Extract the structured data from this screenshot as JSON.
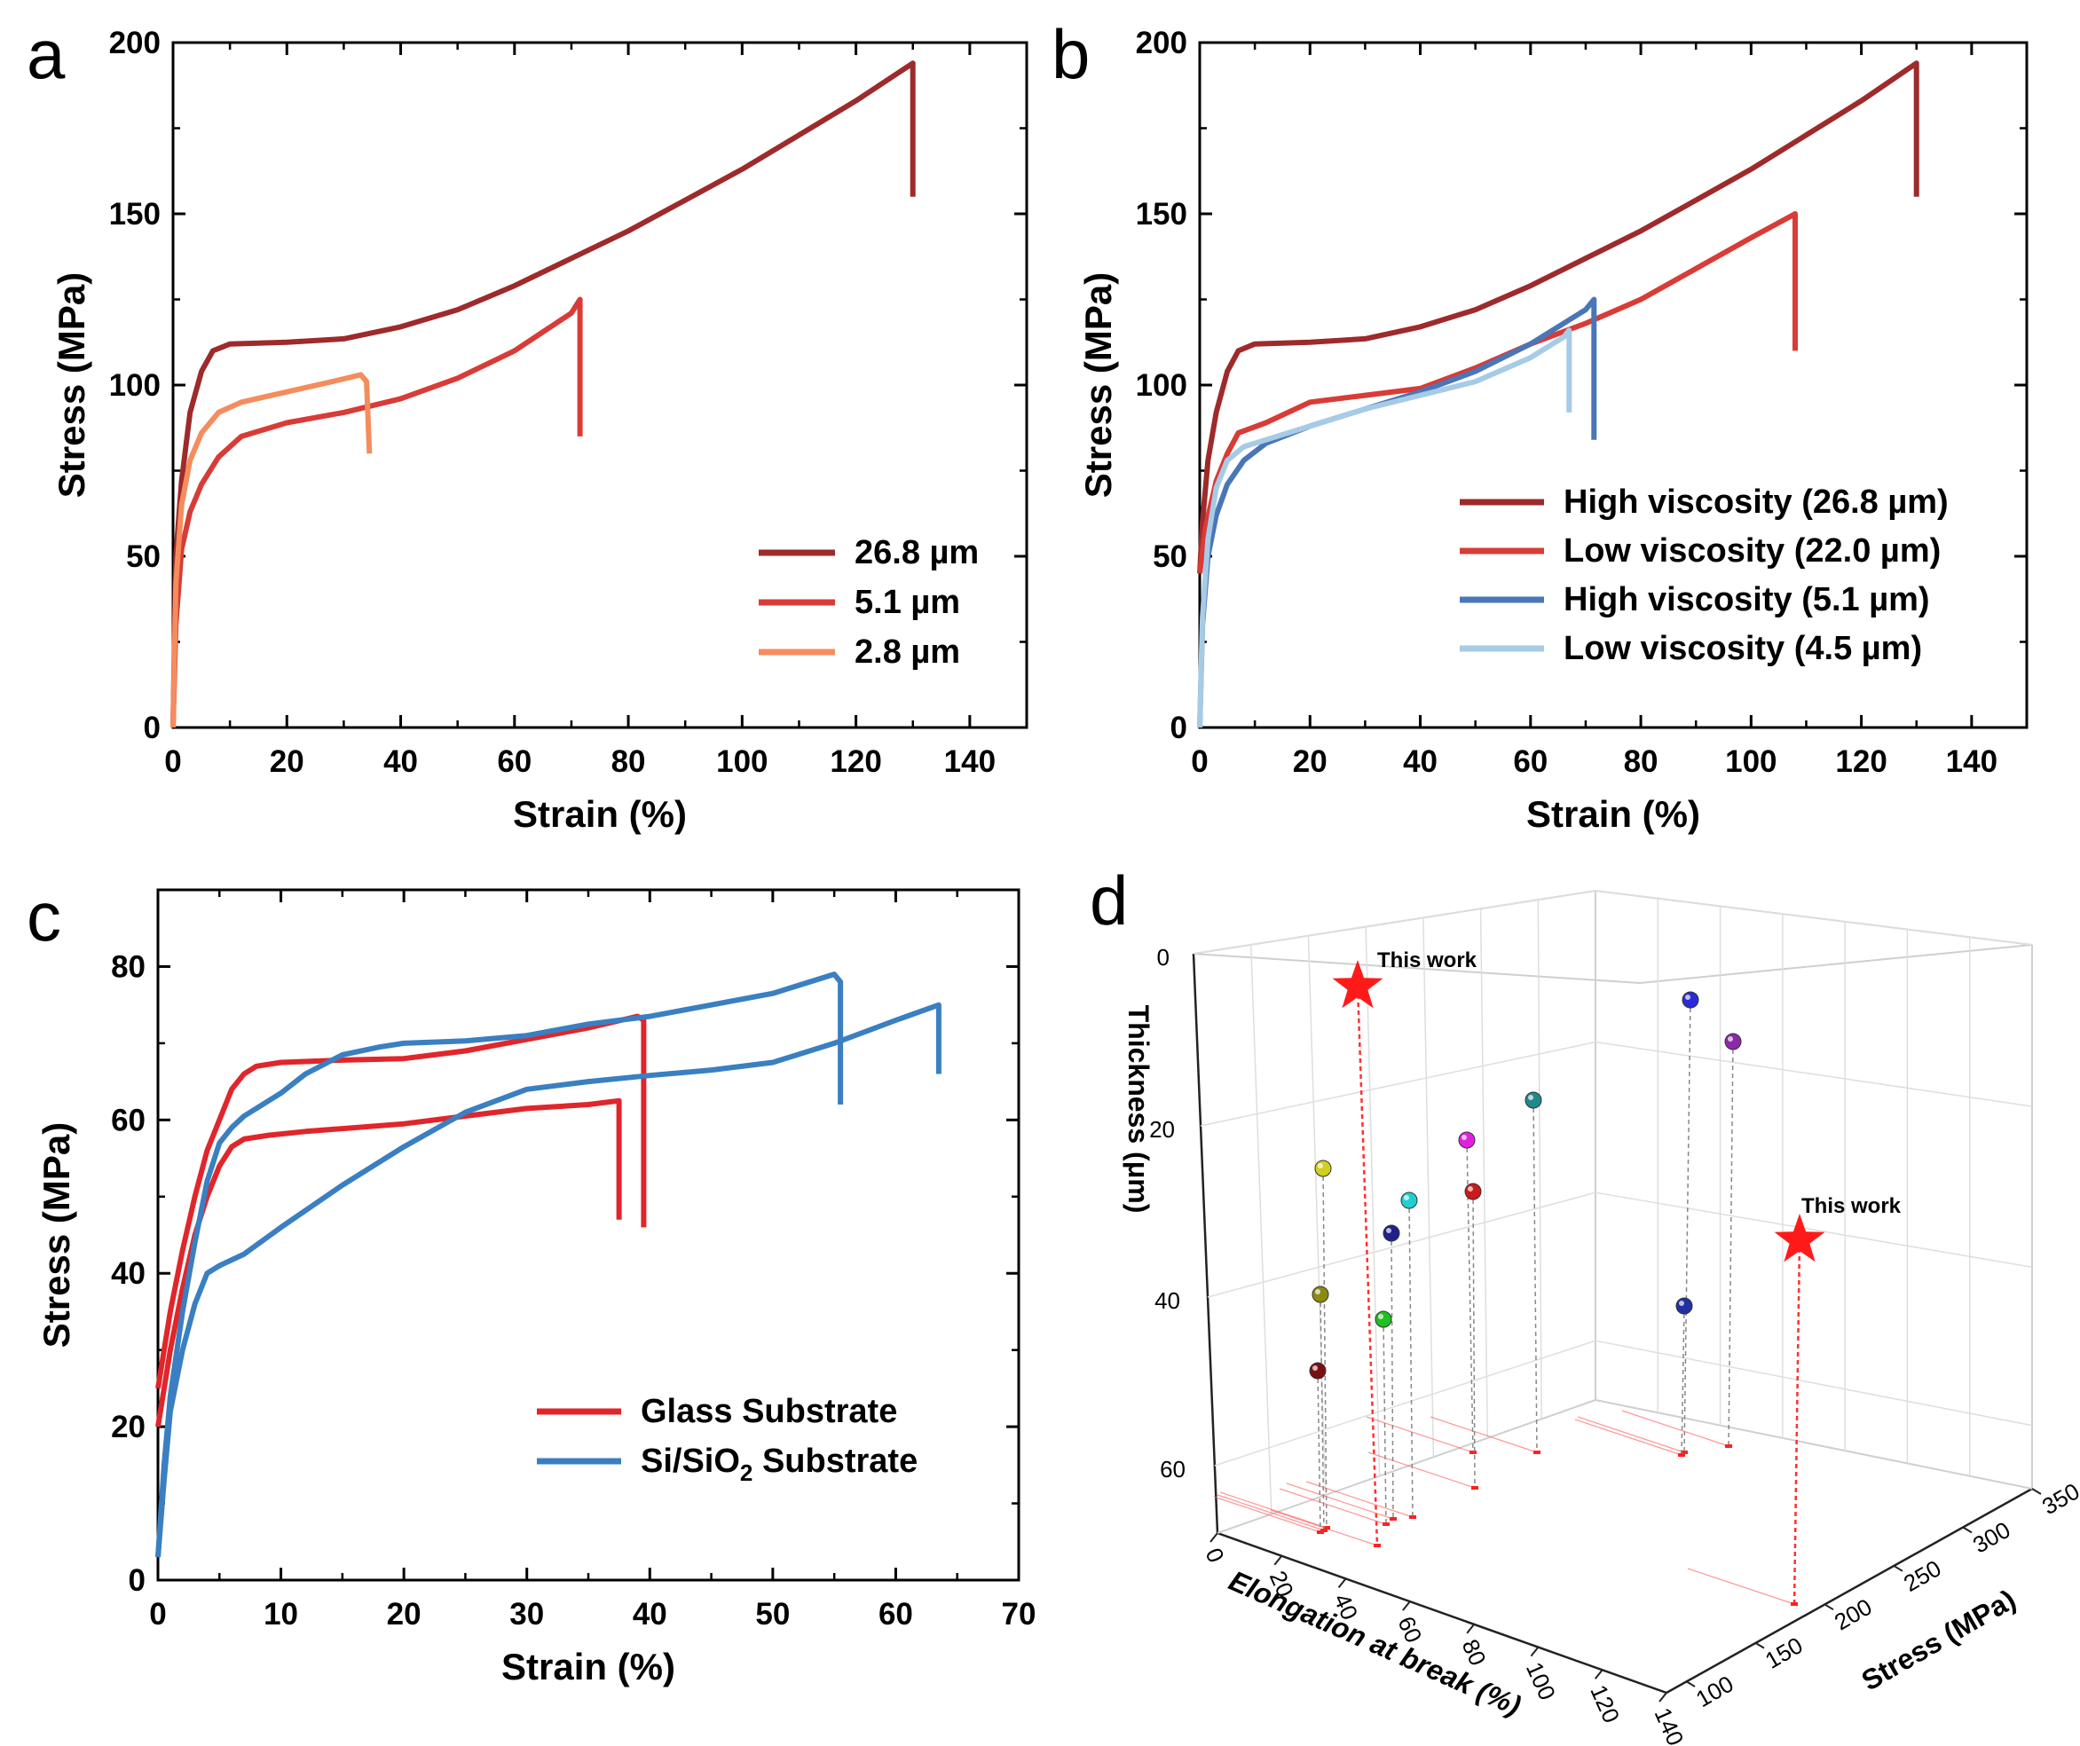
{
  "figure": {
    "panel_letters": [
      "a",
      "b",
      "c",
      "d"
    ]
  },
  "chart_data": [
    {
      "id": "a",
      "type": "line",
      "xlabel": "Strain (%)",
      "ylabel": "Stress (MPa)",
      "xlim": [
        0,
        150
      ],
      "ylim": [
        0,
        200
      ],
      "xticks": [
        "0",
        "20",
        "40",
        "60",
        "80",
        "100",
        "120",
        "140"
      ],
      "yticks": [
        "0",
        "50",
        "100",
        "150",
        "200"
      ],
      "legend_position": "bottom-right",
      "series": [
        {
          "name": "26.8 µm",
          "color": "#9e2a2b",
          "points": [
            [
              0,
              0
            ],
            [
              0.5,
              50
            ],
            [
              1.5,
              72
            ],
            [
              3,
              92
            ],
            [
              5,
              104
            ],
            [
              7,
              110
            ],
            [
              10,
              112
            ],
            [
              20,
              112.5
            ],
            [
              30,
              113.5
            ],
            [
              40,
              117
            ],
            [
              50,
              122
            ],
            [
              60,
              129
            ],
            [
              70,
              137
            ],
            [
              80,
              145
            ],
            [
              90,
              154
            ],
            [
              100,
              163
            ],
            [
              110,
              173
            ],
            [
              120,
              183
            ],
            [
              130,
              194
            ],
            [
              130,
              155
            ]
          ]
        },
        {
          "name": "5.1 µm",
          "color": "#d93b36",
          "points": [
            [
              0,
              0
            ],
            [
              0.5,
              30
            ],
            [
              1.5,
              52
            ],
            [
              3,
              63
            ],
            [
              5,
              71
            ],
            [
              8,
              79
            ],
            [
              12,
              85
            ],
            [
              20,
              89
            ],
            [
              30,
              92
            ],
            [
              40,
              96
            ],
            [
              50,
              102
            ],
            [
              60,
              110
            ],
            [
              70,
              121
            ],
            [
              71.5,
              125
            ],
            [
              71.5,
              85
            ]
          ]
        },
        {
          "name": "2.8 µm",
          "color": "#f58c5e",
          "points": [
            [
              0,
              0
            ],
            [
              0.5,
              42
            ],
            [
              1.5,
              65
            ],
            [
              3,
              78
            ],
            [
              5,
              86
            ],
            [
              8,
              92
            ],
            [
              12,
              95
            ],
            [
              20,
              98
            ],
            [
              28,
              101
            ],
            [
              33,
              103
            ],
            [
              34,
              101
            ],
            [
              34.5,
              80
            ]
          ]
        }
      ]
    },
    {
      "id": "b",
      "type": "line",
      "xlabel": "Strain (%)",
      "ylabel": "Stress (MPa)",
      "xlim": [
        0,
        150
      ],
      "ylim": [
        0,
        200
      ],
      "xticks": [
        "0",
        "20",
        "40",
        "60",
        "80",
        "100",
        "120",
        "140"
      ],
      "yticks": [
        "0",
        "50",
        "100",
        "150",
        "200"
      ],
      "legend_position": "bottom-right",
      "series": [
        {
          "name": "High viscosity (26.8 µm)",
          "color": "#9e2a2b",
          "points": [
            [
              0,
              45
            ],
            [
              0.5,
              60
            ],
            [
              1.5,
              78
            ],
            [
              3,
              92
            ],
            [
              5,
              104
            ],
            [
              7,
              110
            ],
            [
              10,
              112
            ],
            [
              20,
              112.5
            ],
            [
              30,
              113.5
            ],
            [
              40,
              117
            ],
            [
              50,
              122
            ],
            [
              60,
              129
            ],
            [
              70,
              137
            ],
            [
              80,
              145
            ],
            [
              90,
              154
            ],
            [
              100,
              163
            ],
            [
              110,
              173
            ],
            [
              120,
              183
            ],
            [
              130,
              194
            ],
            [
              130,
              155
            ]
          ]
        },
        {
          "name": "Low  viscosity (22.0 µm)",
          "color": "#d93b36",
          "points": [
            [
              0,
              45
            ],
            [
              1,
              58
            ],
            [
              3,
              72
            ],
            [
              5,
              80
            ],
            [
              7,
              86
            ],
            [
              12,
              89
            ],
            [
              20,
              95
            ],
            [
              30,
              97
            ],
            [
              40,
              99
            ],
            [
              50,
              105
            ],
            [
              60,
              112
            ],
            [
              70,
              118
            ],
            [
              80,
              125
            ],
            [
              90,
              134
            ],
            [
              100,
              143
            ],
            [
              108,
              150
            ],
            [
              108,
              110
            ]
          ]
        },
        {
          "name": "High viscosity (5.1 µm)",
          "color": "#4a76b8",
          "points": [
            [
              0,
              0
            ],
            [
              0.5,
              30
            ],
            [
              1.5,
              50
            ],
            [
              3,
              62
            ],
            [
              5,
              71
            ],
            [
              8,
              78
            ],
            [
              12,
              83
            ],
            [
              20,
              88
            ],
            [
              30,
              93
            ],
            [
              40,
              98
            ],
            [
              50,
              104
            ],
            [
              60,
              112
            ],
            [
              70,
              122
            ],
            [
              71.5,
              125
            ],
            [
              71.5,
              84
            ]
          ]
        },
        {
          "name": "Low  viscosity (4.5 µm)",
          "color": "#a6cbe6",
          "points": [
            [
              0,
              0
            ],
            [
              0.5,
              32
            ],
            [
              1.5,
              55
            ],
            [
              3,
              70
            ],
            [
              5,
              78
            ],
            [
              8,
              82
            ],
            [
              12,
              84
            ],
            [
              20,
              88
            ],
            [
              30,
              93
            ],
            [
              40,
              97
            ],
            [
              50,
              101
            ],
            [
              60,
              108
            ],
            [
              66,
              114
            ],
            [
              67,
              116
            ],
            [
              67,
              92
            ]
          ]
        }
      ]
    },
    {
      "id": "c",
      "type": "line",
      "xlabel": "Strain (%)",
      "ylabel": "Stress (MPa)",
      "xlim": [
        0,
        70
      ],
      "ylim": [
        0,
        90
      ],
      "xticks": [
        "0",
        "10",
        "20",
        "30",
        "40",
        "50",
        "60",
        "70"
      ],
      "yticks": [
        "0",
        "20",
        "40",
        "60",
        "80"
      ],
      "legend_position": "bottom-right",
      "legend": [
        {
          "label": "Glass Substrate",
          "color": "#e0262b"
        },
        {
          "label": "Si/SiO",
          "subscript": "2",
          "label_tail": " Substrate",
          "color": "#3a7fc1"
        }
      ],
      "series": [
        {
          "name": "Glass Substrate 1",
          "color": "#e0262b",
          "points": [
            [
              0,
              25
            ],
            [
              1,
              35
            ],
            [
              2,
              43
            ],
            [
              3,
              50
            ],
            [
              4,
              56
            ],
            [
              5,
              60
            ],
            [
              6,
              64
            ],
            [
              7,
              66
            ],
            [
              8,
              67
            ],
            [
              10,
              67.5
            ],
            [
              15,
              67.8
            ],
            [
              20,
              68
            ],
            [
              25,
              69
            ],
            [
              30,
              70.5
            ],
            [
              35,
              72
            ],
            [
              39,
              73.5
            ],
            [
              39.5,
              73
            ],
            [
              39.5,
              46
            ]
          ]
        },
        {
          "name": "Glass Substrate 2",
          "color": "#e0262b",
          "points": [
            [
              0,
              20
            ],
            [
              1,
              30
            ],
            [
              2,
              38
            ],
            [
              3,
              45
            ],
            [
              4,
              50
            ],
            [
              5,
              54
            ],
            [
              6,
              56.5
            ],
            [
              7,
              57.5
            ],
            [
              9,
              58
            ],
            [
              12,
              58.5
            ],
            [
              20,
              59.5
            ],
            [
              25,
              60.5
            ],
            [
              30,
              61.5
            ],
            [
              35,
              62
            ],
            [
              37.5,
              62.5
            ],
            [
              37.5,
              47
            ]
          ]
        },
        {
          "name": "Si/SiO2 Substrate 1",
          "color": "#3a7fc1",
          "points": [
            [
              0,
              3
            ],
            [
              0.5,
              15
            ],
            [
              1,
              24
            ],
            [
              2,
              35
            ],
            [
              3,
              44
            ],
            [
              4,
              52
            ],
            [
              5,
              57
            ],
            [
              6,
              59
            ],
            [
              7,
              60.5
            ],
            [
              10,
              63.5
            ],
            [
              12,
              66
            ],
            [
              15,
              68.5
            ],
            [
              18,
              69.5
            ],
            [
              20,
              70
            ],
            [
              25,
              70.3
            ],
            [
              30,
              71
            ],
            [
              35,
              72.5
            ],
            [
              40,
              73.5
            ],
            [
              45,
              75
            ],
            [
              50,
              76.5
            ],
            [
              55,
              79
            ],
            [
              55.5,
              78
            ],
            [
              55.5,
              62
            ]
          ]
        },
        {
          "name": "Si/SiO2 Substrate 2",
          "color": "#3a7fc1",
          "points": [
            [
              0,
              3
            ],
            [
              0.5,
              13
            ],
            [
              1,
              22
            ],
            [
              2,
              30
            ],
            [
              3,
              36
            ],
            [
              4,
              40
            ],
            [
              5,
              41
            ],
            [
              7,
              42.5
            ],
            [
              10,
              46
            ],
            [
              15,
              51.5
            ],
            [
              20,
              56.5
            ],
            [
              25,
              61
            ],
            [
              30,
              64
            ],
            [
              35,
              65
            ],
            [
              40,
              65.8
            ],
            [
              45,
              66.5
            ],
            [
              50,
              67.5
            ],
            [
              55,
              70
            ],
            [
              60,
              73
            ],
            [
              63.5,
              75
            ],
            [
              63.5,
              66
            ]
          ]
        }
      ]
    },
    {
      "id": "d",
      "type": "scatter",
      "xlabel": "Elongation at break (%)",
      "ylabel": "Stress (MPa)",
      "zlabel": "Thickness (μm)",
      "thickness_ticks": [
        "0",
        "20",
        "40",
        "60"
      ],
      "elongation_ticks": [
        "0",
        "20",
        "40",
        "60",
        "80",
        "100",
        "120",
        "140"
      ],
      "stress_ticks": [
        "100",
        "150",
        "200",
        "250",
        "300",
        "350"
      ],
      "annotation": "This work",
      "points_visual": [
        {
          "label": "This work",
          "marker": "star",
          "color": "#ff1a1a"
        },
        {
          "label": "This work",
          "marker": "star",
          "color": "#ff1a1a"
        },
        {
          "marker": "sphere",
          "color": "#2b2bd6"
        },
        {
          "marker": "sphere",
          "color": "#8a2aa8"
        },
        {
          "marker": "sphere",
          "color": "#1f8a8a"
        },
        {
          "marker": "sphere",
          "color": "#e020e0"
        },
        {
          "marker": "sphere",
          "color": "#d0d020"
        },
        {
          "marker": "sphere",
          "color": "#20d0d0"
        },
        {
          "marker": "sphere",
          "color": "#cc1a1a"
        },
        {
          "marker": "sphere",
          "color": "#20208a"
        },
        {
          "marker": "sphere",
          "color": "#8a8a10"
        },
        {
          "marker": "sphere",
          "color": "#20c020"
        },
        {
          "marker": "sphere",
          "color": "#7a1010"
        },
        {
          "marker": "sphere",
          "color": "#2030a0"
        }
      ]
    }
  ]
}
